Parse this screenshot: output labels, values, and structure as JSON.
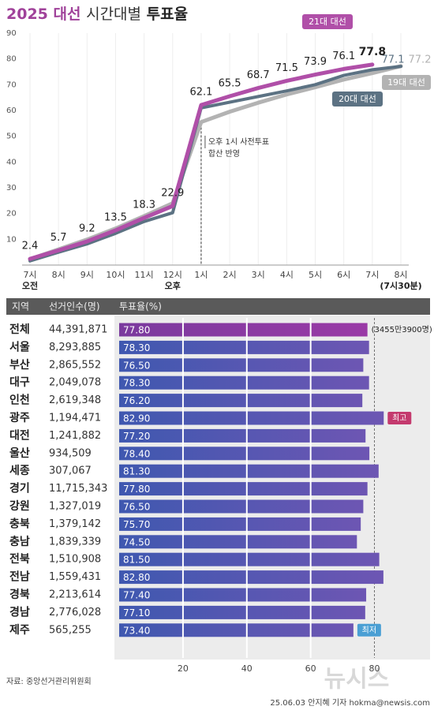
{
  "chart_data": [
    {
      "type": "line",
      "title": [
        "2025 대선",
        "시간대별",
        "투표율"
      ],
      "categories": [
        "7시",
        "8시",
        "9시",
        "10시",
        "11시",
        "12시",
        "1시",
        "2시",
        "3시",
        "4시",
        "5시",
        "6시",
        "7시",
        "8시"
      ],
      "x_sublabels": [
        "오전",
        null,
        null,
        null,
        null,
        "오후",
        null,
        null,
        null,
        null,
        null,
        null,
        null,
        "(7시30분)"
      ],
      "series": [
        {
          "name": "19대 대선",
          "color": "#b3b3b3",
          "show_labels": "last",
          "values": [
            2.3,
            6.1,
            9.9,
            14.2,
            19.0,
            24.0,
            55.5,
            59.5,
            63.0,
            66.2,
            69.0,
            72.0,
            74.5,
            77.2
          ]
        },
        {
          "name": "20대 대선",
          "color": "#5c7283",
          "show_labels": "last",
          "values": [
            1.6,
            5.0,
            8.2,
            12.3,
            16.9,
            20.3,
            61.0,
            63.2,
            65.4,
            67.6,
            70.0,
            73.6,
            75.8,
            77.1
          ]
        },
        {
          "name": "21대 대선",
          "color": "#b04fa8",
          "show_labels": "all",
          "values": [
            2.4,
            5.7,
            9.2,
            13.5,
            18.3,
            22.9,
            62.1,
            65.5,
            68.7,
            71.5,
            73.9,
            76.1,
            77.8,
            null
          ]
        }
      ],
      "annotation": [
        "오후 1시 사전투표",
        "합산 반영"
      ],
      "ylim": [
        0,
        90
      ],
      "yticks": [
        10,
        20,
        30,
        40,
        50,
        60,
        70,
        80,
        90
      ],
      "grid": "x"
    },
    {
      "type": "hbar",
      "columns": [
        "지역",
        "선거인수(명)",
        "투표율(%)"
      ],
      "categories": [
        "전체",
        "서울",
        "부산",
        "대구",
        "인천",
        "광주",
        "대전",
        "울산",
        "세종",
        "경기",
        "강원",
        "충북",
        "충남",
        "전북",
        "전남",
        "경북",
        "경남",
        "제주"
      ],
      "voters": [
        "44,391,871",
        "8,293,885",
        "2,865,552",
        "2,049,078",
        "2,619,348",
        "1,194,471",
        "1,241,882",
        "934,509",
        "307,067",
        "11,715,343",
        "1,327,019",
        "1,379,142",
        "1,839,339",
        "1,510,908",
        "1,559,431",
        "2,213,614",
        "2,776,028",
        "565,255"
      ],
      "values": [
        77.8,
        78.3,
        76.5,
        78.3,
        76.2,
        82.9,
        77.2,
        78.4,
        81.3,
        77.8,
        76.5,
        75.7,
        74.5,
        81.5,
        82.8,
        77.4,
        77.1,
        73.4
      ],
      "value_labels": [
        "77.80",
        "78.30",
        "76.50",
        "78.30",
        "76.20",
        "82.90",
        "77.20",
        "78.40",
        "81.30",
        "77.80",
        "76.50",
        "75.70",
        "74.50",
        "81.50",
        "82.80",
        "77.40",
        "77.10",
        "73.40"
      ],
      "color": "#4a5db3",
      "highlight": "전체",
      "highlight_color": "#8a3aa0",
      "annotations": [
        {
          "category": "전체",
          "text": "(3455만3900명)"
        },
        {
          "category": "광주",
          "text": "최고",
          "color": "#c43a6e"
        },
        {
          "category": "제주",
          "text": "최저",
          "color": "#4a9fd4"
        }
      ],
      "xlim": [
        0,
        90
      ],
      "xticks": [
        20,
        40,
        60,
        80
      ]
    }
  ],
  "source": "자료: 중앙선거관리위원회",
  "credit": "25.06.03 안지혜 기자 hokma@newsis.com",
  "watermark": "뉴시스"
}
